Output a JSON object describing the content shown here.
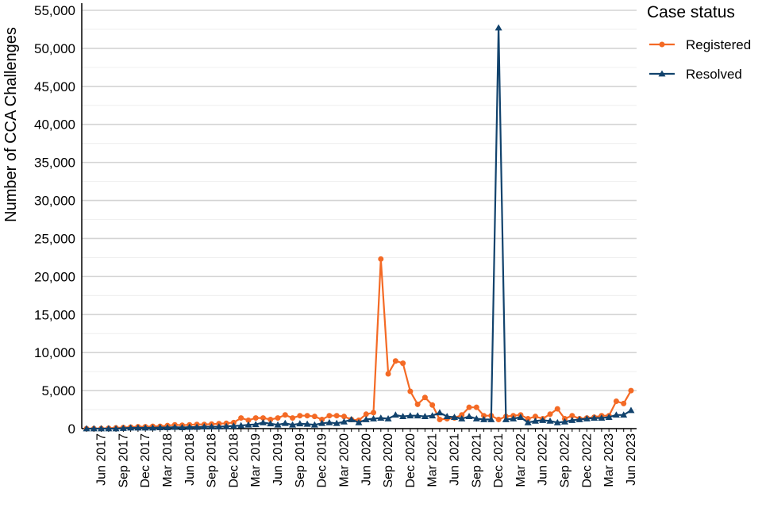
{
  "chart_data": {
    "type": "line",
    "ylabel": "Number of CCA Challenges",
    "xlabel": "",
    "ylim": [
      0,
      55000
    ],
    "y_ticks": [
      "0",
      "5,000",
      "10,000",
      "15,000",
      "20,000",
      "25,000",
      "30,000",
      "35,000",
      "40,000",
      "45,000",
      "50,000",
      "55,000"
    ],
    "x_tick_labels": [
      "Jun 2017",
      "Sep 2017",
      "Dec 2017",
      "Mar 2018",
      "Jun 2018",
      "Sep 2018",
      "Dec 2018",
      "Mar 2019",
      "Jun 2019",
      "Sep 2019",
      "Dec 2019",
      "Mar 2020",
      "Jun 2020",
      "Sep 2020",
      "Dec 2020",
      "Mar 2021",
      "Jun 2021",
      "Sep 2021",
      "Dec 2021",
      "Mar 2022",
      "Jun 2022",
      "Sep 2022",
      "Dec 2022",
      "Mar 2023",
      "Jun 2023"
    ],
    "x_range": [
      "Apr 2017",
      "Jun 2023"
    ],
    "grid": true,
    "legend": {
      "title": "Case status",
      "position": "right"
    },
    "series": [
      {
        "name": "Registered",
        "color": "#f46a25",
        "marker": "circle",
        "values": [
          0,
          0,
          20,
          50,
          100,
          150,
          200,
          250,
          250,
          300,
          300,
          400,
          500,
          450,
          500,
          550,
          550,
          600,
          650,
          700,
          800,
          1400,
          1100,
          1400,
          1400,
          1200,
          1400,
          1800,
          1400,
          1700,
          1700,
          1600,
          1200,
          1700,
          1700,
          1600,
          1200,
          1100,
          1900,
          2100,
          22300,
          7200,
          8900,
          8600,
          4900,
          3200,
          4100,
          3100,
          1200,
          1300,
          1400,
          1800,
          2800,
          2800,
          1700,
          1700,
          1200,
          1600,
          1700,
          1800,
          1300,
          1600,
          1300,
          1900,
          2600,
          1300,
          1700,
          1300,
          1400,
          1500,
          1700,
          1700,
          3600,
          3300,
          5000
        ]
      },
      {
        "name": "Resolved",
        "color": "#12436d",
        "marker": "triangle",
        "values": [
          0,
          0,
          0,
          0,
          0,
          50,
          100,
          100,
          100,
          100,
          150,
          150,
          200,
          150,
          200,
          200,
          250,
          250,
          250,
          300,
          350,
          400,
          500,
          550,
          800,
          650,
          500,
          700,
          500,
          650,
          600,
          500,
          700,
          800,
          700,
          900,
          1200,
          800,
          1200,
          1300,
          1400,
          1300,
          1800,
          1600,
          1700,
          1700,
          1600,
          1700,
          2100,
          1600,
          1500,
          1300,
          1600,
          1300,
          1200,
          1200,
          52700,
          1200,
          1300,
          1500,
          800,
          1000,
          1100,
          1000,
          800,
          900,
          1100,
          1200,
          1300,
          1400,
          1400,
          1500,
          1800,
          1800,
          2400
        ]
      }
    ]
  }
}
